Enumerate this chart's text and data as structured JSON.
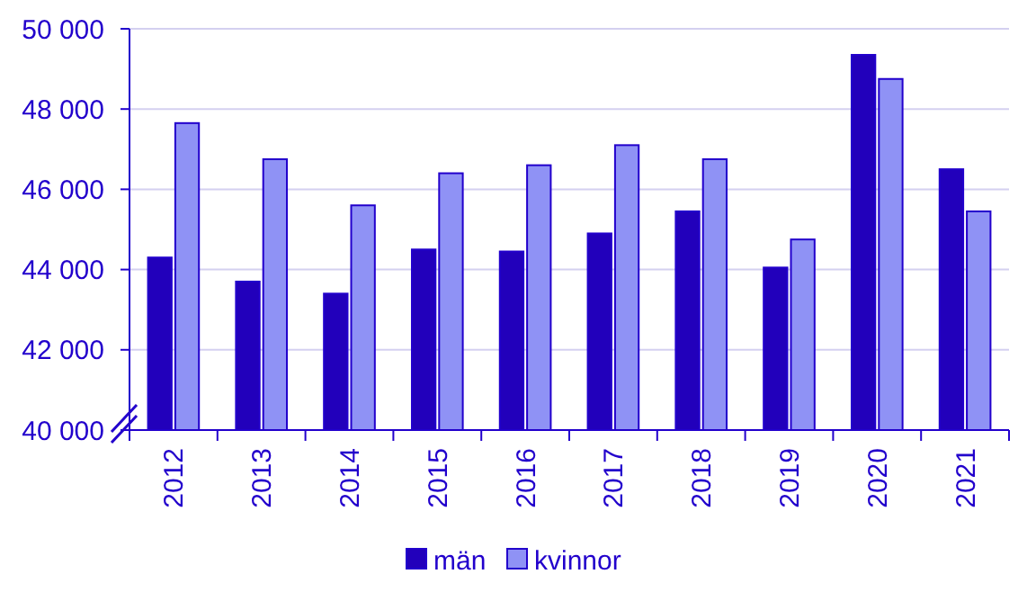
{
  "chart_data": {
    "type": "bar",
    "categories": [
      "2012",
      "2013",
      "2014",
      "2015",
      "2016",
      "2017",
      "2018",
      "2019",
      "2020",
      "2021"
    ],
    "series": [
      {
        "name": "män",
        "color": "#2200bb",
        "values": [
          44300,
          43700,
          43400,
          44500,
          44450,
          44900,
          45450,
          44050,
          49350,
          46500
        ]
      },
      {
        "name": "kvinnor",
        "color": "#8f92f5",
        "values": [
          47650,
          46750,
          45600,
          46400,
          46600,
          47100,
          46750,
          44750,
          48750,
          45450
        ]
      }
    ],
    "ylim": [
      40000,
      50000
    ],
    "yticks": [
      {
        "value": 40000,
        "label": "40 000"
      },
      {
        "value": 42000,
        "label": "42 000"
      },
      {
        "value": 44000,
        "label": "44 000"
      },
      {
        "value": 46000,
        "label": "46 000"
      },
      {
        "value": 48000,
        "label": "48 000"
      },
      {
        "value": 50000,
        "label": "50 000"
      }
    ],
    "grid": "y",
    "legend": "bottom"
  }
}
